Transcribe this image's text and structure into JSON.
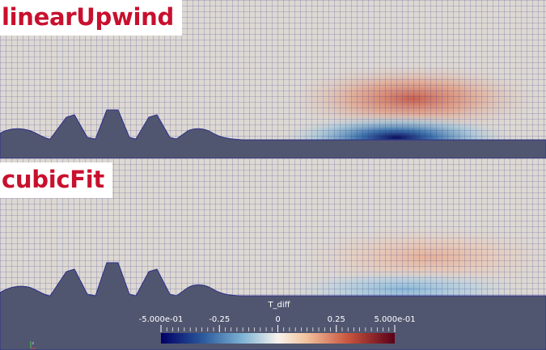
{
  "panels": {
    "top": {
      "label": "linearUpwind"
    },
    "bottom": {
      "label": "cubicFit"
    }
  },
  "colorbar": {
    "title": "T_diff",
    "ticks": [
      {
        "label": "-5.000e-01",
        "value": -0.5
      },
      {
        "label": "-0.25",
        "value": -0.25
      },
      {
        "label": "0",
        "value": 0
      },
      {
        "label": "0.25",
        "value": 0.25
      },
      {
        "label": "5.000e-01",
        "value": 0.5
      }
    ],
    "range": [
      -0.5,
      0.5
    ],
    "colormap": [
      "#000080",
      "#3b6fb0",
      "#9ec9e0",
      "#f4f0ea",
      "#f2b58c",
      "#c0392b",
      "#600020"
    ]
  },
  "colors": {
    "background": "#515670",
    "field_neutral": "#ddd8d2",
    "mesh_line": "#2b2f8a",
    "label_text": "#c8102e"
  },
  "axes_glyph": {
    "label": "z"
  }
}
